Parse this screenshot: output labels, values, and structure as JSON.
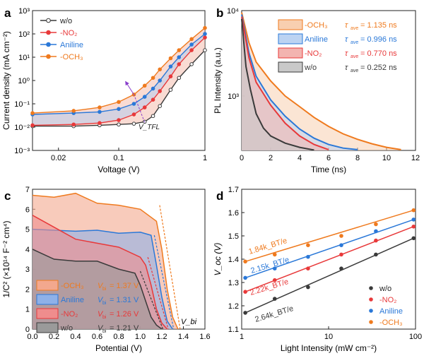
{
  "colors": {
    "wo": "#3a3a3a",
    "no2": "#e8393a",
    "aniline": "#2a78d8",
    "och3": "#ef7a1e",
    "tfl": "#8a3fcc"
  },
  "chart_data": [
    {
      "panel": "a",
      "type": "line",
      "xscale": "log",
      "yscale": "log",
      "xlabel": "Voltage (V)",
      "ylabel": "Current density (mA cm⁻²)",
      "xlim": [
        0.01,
        1
      ],
      "ylim": [
        0.001,
        1000
      ],
      "xticks": [
        "0.02",
        "0.1",
        "1"
      ],
      "yticks": [
        "10⁻³",
        "10⁻²",
        "10⁻¹",
        "10⁰",
        "10¹",
        "10²",
        "10³"
      ],
      "annotation": "V_TFL",
      "legend": [
        "w/o",
        "-NO₂",
        "Aniline",
        "-OCH₃"
      ],
      "series": [
        {
          "name": "w/o",
          "x": [
            0.01,
            0.03,
            0.06,
            0.1,
            0.15,
            0.2,
            0.25,
            0.3,
            0.4,
            0.5,
            0.7,
            1.0
          ],
          "y": [
            0.011,
            0.011,
            0.012,
            0.013,
            0.014,
            0.017,
            0.03,
            0.08,
            0.4,
            1.3,
            5,
            20
          ]
        },
        {
          "name": "-NO₂",
          "x": [
            0.01,
            0.03,
            0.06,
            0.1,
            0.15,
            0.2,
            0.25,
            0.3,
            0.4,
            0.5,
            0.7,
            1.0
          ],
          "y": [
            0.012,
            0.013,
            0.015,
            0.02,
            0.035,
            0.07,
            0.15,
            0.35,
            1.5,
            5,
            20,
            70
          ]
        },
        {
          "name": "Aniline",
          "x": [
            0.01,
            0.03,
            0.06,
            0.1,
            0.15,
            0.2,
            0.25,
            0.3,
            0.4,
            0.5,
            0.7,
            1.0
          ],
          "y": [
            0.035,
            0.04,
            0.045,
            0.06,
            0.1,
            0.2,
            0.45,
            1,
            4,
            10,
            35,
            100
          ]
        },
        {
          "name": "-OCH₃",
          "x": [
            0.01,
            0.03,
            0.06,
            0.1,
            0.15,
            0.2,
            0.25,
            0.3,
            0.4,
            0.5,
            0.7,
            1.0
          ],
          "y": [
            0.04,
            0.05,
            0.07,
            0.12,
            0.25,
            0.6,
            1.3,
            3,
            9,
            20,
            60,
            180
          ]
        }
      ]
    },
    {
      "panel": "b",
      "type": "line",
      "yscale": "log",
      "xlabel": "Time (ns)",
      "ylabel": "PL Intensity (a.u.)",
      "xlim": [
        0,
        12
      ],
      "ylim": [
        230,
        10000
      ],
      "xticks": [
        "0",
        "2",
        "4",
        "6",
        "8",
        "10",
        "12"
      ],
      "yticks": [
        "10³",
        "10⁴"
      ],
      "legend": [
        {
          "name": "-OCH₃",
          "tau_label": "τ",
          "tau_sub": "ave",
          "tau": "= 1.135 ns"
        },
        {
          "name": "Aniline",
          "tau_label": "τ",
          "tau_sub": "ave",
          "tau": "= 0.996 ns"
        },
        {
          "name": "-NO₂",
          "tau_label": "τ",
          "tau_sub": "ave",
          "tau": "= 0.770 ns"
        },
        {
          "name": "w/o",
          "tau_label": "τ",
          "tau_sub": "ave",
          "tau": "= 0.252 ns"
        }
      ],
      "series": [
        {
          "name": "-OCH₃",
          "x": [
            0,
            0.5,
            1,
            2,
            3,
            4,
            5,
            6,
            7,
            8,
            9,
            10,
            11
          ],
          "y": [
            9500,
            4200,
            2500,
            1500,
            1000,
            750,
            560,
            440,
            360,
            310,
            275,
            250,
            235
          ]
        },
        {
          "name": "Aniline",
          "x": [
            0,
            0.5,
            1,
            2,
            3,
            4,
            5,
            6,
            7,
            8
          ],
          "y": [
            9000,
            3200,
            1700,
            900,
            580,
            410,
            320,
            270,
            245,
            235
          ]
        },
        {
          "name": "-NO₂",
          "x": [
            0,
            0.5,
            1,
            2,
            3,
            4,
            5,
            6
          ],
          "y": [
            8500,
            2800,
            1450,
            780,
            480,
            340,
            270,
            235
          ]
        },
        {
          "name": "w/o",
          "x": [
            0,
            0.3,
            0.6,
            1,
            1.5,
            2,
            3,
            4,
            5
          ],
          "y": [
            8000,
            2200,
            1200,
            620,
            420,
            340,
            280,
            250,
            232
          ]
        }
      ]
    },
    {
      "panel": "c",
      "type": "area",
      "xlabel": "Potential (V)",
      "ylabel": "1/C² (×10¹⁴ F⁻² cm⁴)",
      "xlim": [
        0,
        1.6
      ],
      "ylim": [
        0,
        7
      ],
      "xticks": [
        "0.0",
        "0.2",
        "0.4",
        "0.6",
        "0.8",
        "1.0",
        "1.2",
        "1.4",
        "1.6"
      ],
      "yticks": [
        "0",
        "1",
        "2",
        "3",
        "4",
        "5",
        "6",
        "7"
      ],
      "annotation": "V_bi",
      "legend": [
        {
          "name": "-OCH₃",
          "vbi": "= 1.37 V"
        },
        {
          "name": "Aniline",
          "vbi": "= 1.31 V"
        },
        {
          "name": "-NO₂",
          "vbi": "= 1.26 V"
        },
        {
          "name": "w/o",
          "vbi": "= 1.21 V"
        }
      ],
      "series": [
        {
          "name": "-OCH₃",
          "x": [
            0,
            0.2,
            0.4,
            0.6,
            0.8,
            1.0,
            1.15,
            1.2,
            1.25,
            1.3,
            1.35
          ],
          "y": [
            6.7,
            6.6,
            6.8,
            6.3,
            6.2,
            6.0,
            5.4,
            4.0,
            2.0,
            0.6,
            0
          ]
        },
        {
          "name": "Aniline",
          "x": [
            0,
            0.2,
            0.4,
            0.6,
            0.8,
            1.0,
            1.1,
            1.15,
            1.2,
            1.25,
            1.3
          ],
          "y": [
            5.0,
            4.95,
            4.9,
            4.95,
            4.8,
            4.85,
            4.7,
            3.2,
            1.6,
            0.4,
            0
          ]
        },
        {
          "name": "-NO₂",
          "x": [
            0,
            0.2,
            0.4,
            0.6,
            0.8,
            1.0,
            1.05,
            1.1,
            1.15,
            1.2,
            1.25
          ],
          "y": [
            5.7,
            5.1,
            4.5,
            4.3,
            4.1,
            3.6,
            3.2,
            2.2,
            1.0,
            0.3,
            0
          ]
        },
        {
          "name": "w/o",
          "x": [
            0,
            0.2,
            0.4,
            0.6,
            0.8,
            0.95,
            1.0,
            1.05,
            1.1,
            1.15,
            1.2
          ],
          "y": [
            4.0,
            3.5,
            3.4,
            3.4,
            3.0,
            2.8,
            2.2,
            1.4,
            0.6,
            0.2,
            0
          ]
        }
      ]
    },
    {
      "panel": "d",
      "type": "scatter",
      "xscale": "log",
      "xlabel": "Light Intensity (mW cm⁻²)",
      "ylabel": "V_oc (V)",
      "xlim": [
        1,
        100
      ],
      "ylim": [
        1.1,
        1.7
      ],
      "xticks": [
        "1",
        "10",
        "100"
      ],
      "yticks": [
        "1.1",
        "1.2",
        "1.3",
        "1.4",
        "1.5",
        "1.6",
        "1.7"
      ],
      "annotations": [
        "1.84k_BT/e",
        "2.15k_BT/e",
        "2.22k_BT/e",
        "2.64k_BT/e"
      ],
      "legend": [
        "w/o",
        "-NO₂",
        "Aniline",
        "-OCH₃"
      ],
      "series": [
        {
          "name": "w/o",
          "slope_label": "2.64k_BT/e",
          "x": [
            1.1,
            2.4,
            5.8,
            14,
            35,
            95
          ],
          "y": [
            1.17,
            1.23,
            1.28,
            1.36,
            1.42,
            1.49
          ]
        },
        {
          "name": "-NO₂",
          "slope_label": "2.22k_BT/e",
          "x": [
            1.1,
            2.4,
            5.8,
            14,
            35,
            95
          ],
          "y": [
            1.26,
            1.31,
            1.36,
            1.42,
            1.48,
            1.54
          ]
        },
        {
          "name": "Aniline",
          "slope_label": "2.15k_BT/e",
          "x": [
            1.1,
            2.4,
            5.8,
            14,
            35,
            95
          ],
          "y": [
            1.32,
            1.36,
            1.41,
            1.46,
            1.52,
            1.57
          ]
        },
        {
          "name": "-OCH₃",
          "slope_label": "1.84k_BT/e",
          "x": [
            1.1,
            2.4,
            5.8,
            14,
            35,
            95
          ],
          "y": [
            1.39,
            1.42,
            1.46,
            1.5,
            1.55,
            1.61
          ]
        }
      ]
    }
  ]
}
